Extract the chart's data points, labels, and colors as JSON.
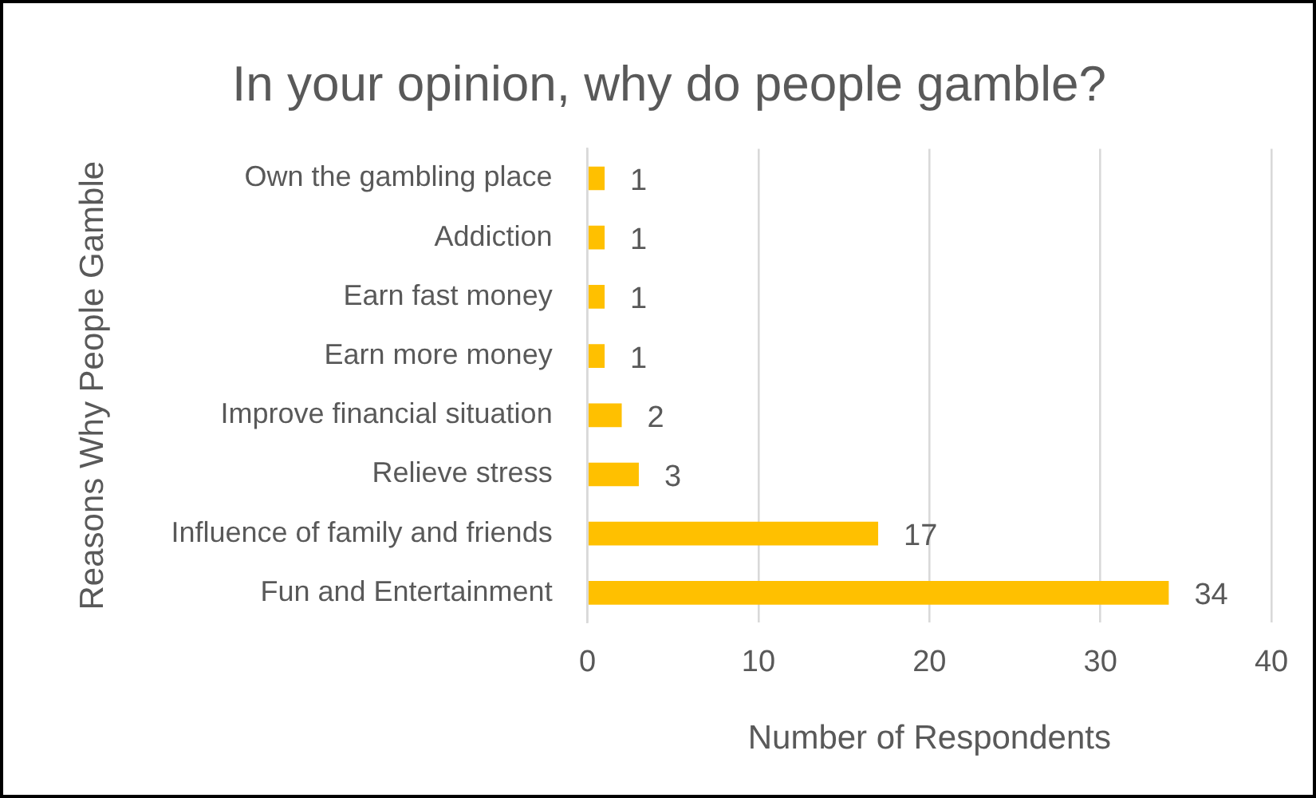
{
  "chart_data": {
    "type": "bar",
    "orientation": "horizontal",
    "title": "In your opinion, why do people gamble?",
    "xlabel": "Number of Respondents",
    "ylabel": "Reasons Why People Gamble",
    "categories": [
      "Own the gambling place",
      "Addiction",
      "Earn fast money",
      "Earn more money",
      "Improve financial situation",
      "Relieve stress",
      "Influence of family and friends",
      "Fun and Entertainment"
    ],
    "values": [
      1,
      1,
      1,
      1,
      2,
      3,
      17,
      34
    ],
    "color": "#ffc000",
    "data_labels": true,
    "grid": "x",
    "legend": false,
    "xlim": [
      0,
      40
    ],
    "xticks": [
      0,
      10,
      20,
      30,
      40
    ]
  }
}
